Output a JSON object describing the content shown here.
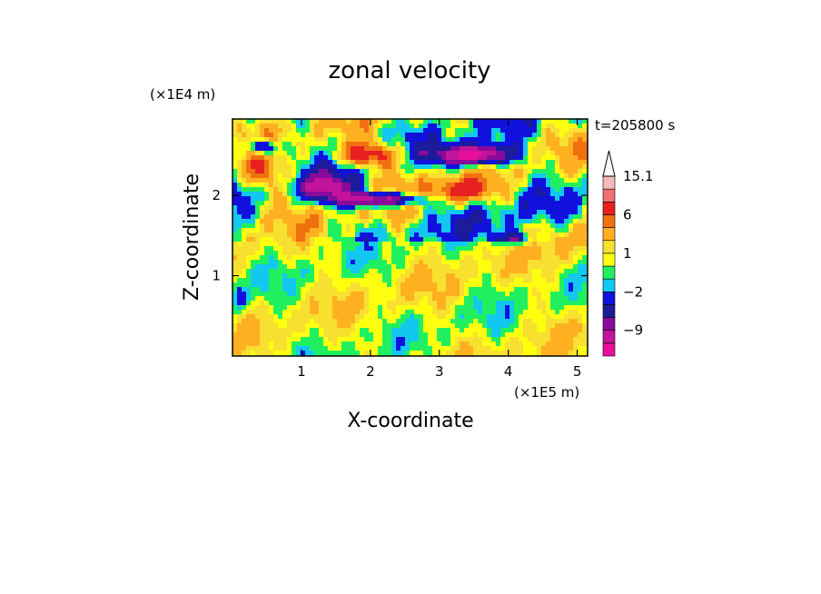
{
  "chart_data": {
    "type": "heatmap",
    "title": "zonal velocity",
    "xlabel": "X-coordinate",
    "ylabel": "Z-coordinate",
    "x_scale_label": "(×1E5 m)",
    "y_scale_label": "(×1E4 m)",
    "time_label": "t=205800 s",
    "xlim": [
      0,
      5.15
    ],
    "ylim": [
      0,
      2.95
    ],
    "x_ticks": [
      1,
      2,
      3,
      4,
      5
    ],
    "y_ticks": [
      1,
      2
    ],
    "colorbar": {
      "tick_labels": [
        {
          "label": "15.1",
          "level": 15.1
        },
        {
          "label": "6",
          "level": 6
        },
        {
          "label": "1",
          "level": 1
        },
        {
          "label": "−2",
          "level": -2
        },
        {
          "label": "−9",
          "level": -9
        }
      ],
      "levels": [
        -15,
        -12,
        -9,
        -6,
        -4,
        -2,
        -1,
        0,
        1,
        2,
        4,
        6,
        9,
        12,
        15.1
      ],
      "colors": [
        "#e8109a",
        "#c2149b",
        "#8a0a9a",
        "#1c1c9a",
        "#1111dd",
        "#12c8f0",
        "#20f060",
        "#ffff10",
        "#f7e030",
        "#ffb020",
        "#f07010",
        "#e82020",
        "#f07070",
        "#f7b8b8",
        "#ffffff"
      ]
    },
    "field_features": [
      {
        "kind": "positive",
        "x": 2.0,
        "z": 2.5,
        "value": 9
      },
      {
        "kind": "negative",
        "x": 2.1,
        "z": 1.95,
        "value": -12
      },
      {
        "kind": "negative",
        "x": 3.5,
        "z": 2.5,
        "value": -15
      },
      {
        "kind": "positive",
        "x": 3.3,
        "z": 2.0,
        "value": 6
      },
      {
        "kind": "positive",
        "x": 0.4,
        "z": 2.3,
        "value": 6
      },
      {
        "kind": "negative",
        "x": 0.4,
        "z": 2.6,
        "value": -9
      },
      {
        "kind": "positive",
        "x": 2.7,
        "z": 0.3,
        "value": 4
      }
    ],
    "grid": false
  }
}
